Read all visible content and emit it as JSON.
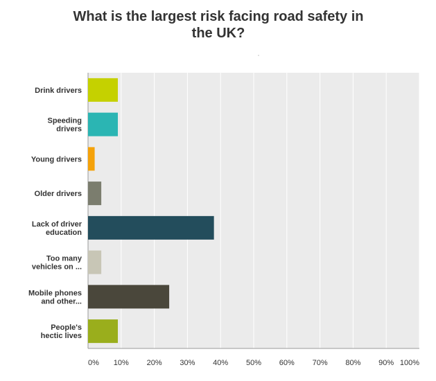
{
  "chart_data": {
    "type": "bar",
    "orientation": "horizontal",
    "title": "What is the largest risk facing road safety in the UK?",
    "title_lines": [
      "What is the largest risk facing road safety in",
      "the UK?"
    ],
    "categories": [
      [
        "Drink drivers"
      ],
      [
        "Speeding",
        "drivers"
      ],
      [
        "Young drivers"
      ],
      [
        "Older drivers"
      ],
      [
        "Lack of driver",
        "education"
      ],
      [
        "Too many",
        "vehicles on ..."
      ],
      [
        "Mobile phones",
        "and other..."
      ],
      [
        "People's",
        "hectic lives"
      ]
    ],
    "values": [
      9,
      9,
      2,
      4,
      38,
      4,
      24.5,
      9
    ],
    "colors": [
      "#c5d100",
      "#2bb5b3",
      "#f5a20a",
      "#7b7d6e",
      "#234d5c",
      "#c8c6b6",
      "#4a473b",
      "#9aae1c"
    ],
    "xlim": [
      0,
      100
    ],
    "xticks": [
      "0%",
      "10%",
      "20%",
      "30%",
      "40%",
      "50%",
      "60%",
      "70%",
      "80%",
      "90%",
      "100%"
    ],
    "xlabel": "",
    "ylabel": "",
    "grid": true,
    "plot_background": "#ebebeb",
    "legend": "none"
  }
}
